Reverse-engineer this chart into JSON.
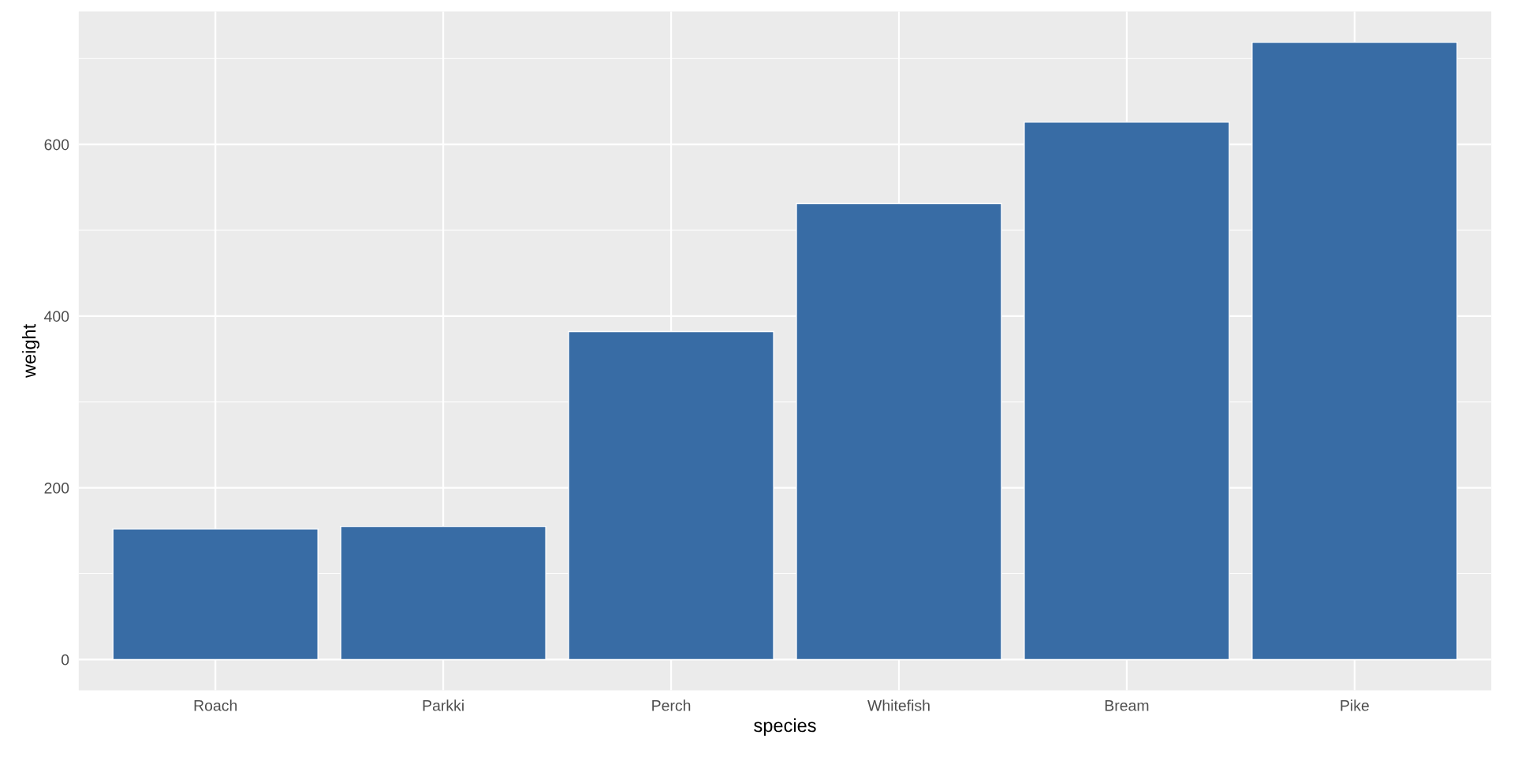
{
  "chart_data": {
    "type": "bar",
    "xlabel": "species",
    "ylabel": "weight",
    "categories": [
      "Roach",
      "Parkki",
      "Perch",
      "Whitefish",
      "Bream",
      "Pike"
    ],
    "values": [
      152,
      155,
      382,
      531,
      626,
      719
    ],
    "color": "#386ca5",
    "ylim": [
      -36,
      755
    ],
    "yticks": [
      0,
      {
        "value": 100,
        "label": null
      },
      200,
      {
        "value": 300,
        "label": null
      },
      400,
      {
        "value": 500,
        "label": null
      },
      600,
      {
        "value": 700,
        "label": null
      }
    ],
    "grid": true
  }
}
